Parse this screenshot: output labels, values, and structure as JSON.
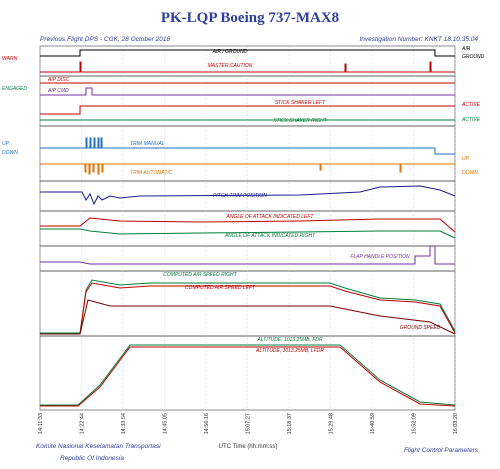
{
  "header": {
    "title": "PK-LQP Boeing 737-MAX8",
    "flight": "Previous Flight DPS - CGK, 28 October 2018",
    "investigation": "Investigation Number: KNKT 18.10.35.04"
  },
  "traces": [
    {
      "label": "AIR / GROUND",
      "color": "#000000"
    },
    {
      "label": "MASTER CAUTION",
      "color": "#c00000"
    },
    {
      "label": "A/P DISC",
      "color": "#c00000"
    },
    {
      "label": "A/P CMD",
      "color": "#7030a0"
    },
    {
      "label": "STICK SHAKER LEFT",
      "color": "#c00000"
    },
    {
      "label": "STICK SHAKER RIGHT",
      "color": "#00803c"
    },
    {
      "label": "TRIM MANUAL",
      "color": "#1f6fc0"
    },
    {
      "label": "TRIM AUTOMATIC",
      "color": "#e07000"
    },
    {
      "label": "PITCH TRIM POSITION",
      "color": "#1a1a8c"
    },
    {
      "label": "ANGLE OF ATTACK INDICATED LEFT",
      "color": "#c00000"
    },
    {
      "label": "ANGLE OF ATTACK INDICATED RIGHT",
      "color": "#00803c"
    },
    {
      "label": "FLAP HANDLE POSITION",
      "color": "#7030a0"
    },
    {
      "label": "COMPUTED AIR SPEED RIGHT",
      "color": "#00803c"
    },
    {
      "label": "COMPUTED AIR SPEED LEFT",
      "color": "#c00000"
    },
    {
      "label": "GROUND SPEED",
      "color": "#7a0000"
    },
    {
      "label": "ALTITUDE, 1013.25MB, FDR",
      "color": "#00803c"
    },
    {
      "label": "ALTITUDE, 1013.25MB, LFDR",
      "color": "#c00000"
    }
  ],
  "left_labels": [
    "WARN",
    "ENGAGED",
    "UP",
    "DOWN"
  ],
  "right_labels": [
    "AIR",
    "GROUND",
    "ACTIVE",
    "ACTIVE",
    "UP",
    "DOWN"
  ],
  "time_ticks": [
    "14:11:33",
    "14:22:44",
    "14:33:54",
    "14:45:05",
    "14:56:16",
    "15:07:27",
    "15:18:37",
    "15:29:48",
    "15:40:59",
    "15:52:09",
    "16:03:20"
  ],
  "x_label": "UTC Time (hh:mm:ss)",
  "footer": {
    "org": "Komite Nasional Keselamatan Transportasi",
    "country": "Republic Of Indonesia",
    "section": "Flight Control Parameters"
  }
}
